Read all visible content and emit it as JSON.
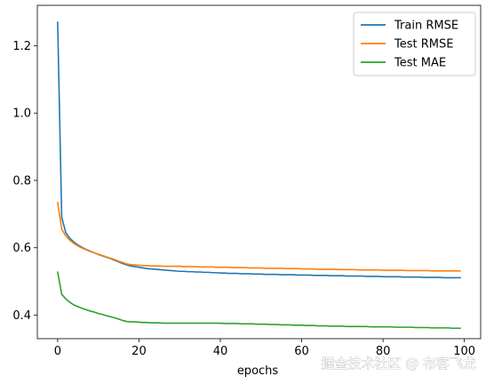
{
  "chart_data": {
    "type": "line",
    "title": "",
    "xlabel": "epochs",
    "ylabel": "",
    "xlim": [
      -5,
      104
    ],
    "ylim": [
      0.33,
      1.32
    ],
    "xticks": [
      0,
      20,
      40,
      60,
      80,
      100
    ],
    "yticks": [
      0.4,
      0.6,
      0.8,
      1.0,
      1.2
    ],
    "xtick_labels": [
      "0",
      "20",
      "40",
      "60",
      "80",
      "100"
    ],
    "ytick_labels": [
      "0.4",
      "0.6",
      "0.8",
      "1.0",
      "1.2"
    ],
    "grid": false,
    "legend": "top-right",
    "x": [
      0,
      1,
      2,
      3,
      4,
      5,
      6,
      7,
      8,
      9,
      10,
      11,
      12,
      13,
      14,
      15,
      16,
      17,
      18,
      19,
      20,
      21,
      22,
      23,
      24,
      25,
      26,
      27,
      28,
      29,
      30,
      31,
      32,
      33,
      34,
      35,
      36,
      37,
      38,
      39,
      40,
      41,
      42,
      43,
      44,
      45,
      46,
      47,
      48,
      49,
      50,
      51,
      52,
      53,
      54,
      55,
      56,
      57,
      58,
      59,
      60,
      61,
      62,
      63,
      64,
      65,
      66,
      67,
      68,
      69,
      70,
      71,
      72,
      73,
      74,
      75,
      76,
      77,
      78,
      79,
      80,
      81,
      82,
      83,
      84,
      85,
      86,
      87,
      88,
      89,
      90,
      91,
      92,
      93,
      94,
      95,
      96,
      97,
      98,
      99
    ],
    "series": [
      {
        "name": "Train RMSE",
        "color": "#1f77b4",
        "values": [
          1.27,
          0.69,
          0.645,
          0.628,
          0.617,
          0.608,
          0.601,
          0.595,
          0.59,
          0.585,
          0.58,
          0.576,
          0.572,
          0.568,
          0.563,
          0.558,
          0.553,
          0.549,
          0.546,
          0.544,
          0.542,
          0.54,
          0.538,
          0.537,
          0.536,
          0.535,
          0.534,
          0.533,
          0.532,
          0.531,
          0.53,
          0.53,
          0.529,
          0.529,
          0.528,
          0.528,
          0.527,
          0.527,
          0.526,
          0.526,
          0.525,
          0.525,
          0.524,
          0.524,
          0.524,
          0.523,
          0.523,
          0.523,
          0.522,
          0.522,
          0.522,
          0.521,
          0.521,
          0.521,
          0.521,
          0.52,
          0.52,
          0.52,
          0.52,
          0.519,
          0.519,
          0.519,
          0.519,
          0.518,
          0.518,
          0.518,
          0.518,
          0.517,
          0.517,
          0.517,
          0.517,
          0.516,
          0.516,
          0.516,
          0.516,
          0.516,
          0.515,
          0.515,
          0.515,
          0.515,
          0.514,
          0.514,
          0.514,
          0.514,
          0.514,
          0.513,
          0.513,
          0.513,
          0.513,
          0.513,
          0.512,
          0.512,
          0.512,
          0.512,
          0.512,
          0.511,
          0.511,
          0.511,
          0.511,
          0.511
        ]
      },
      {
        "name": "Test RMSE",
        "color": "#ff7f0e",
        "values": [
          0.735,
          0.655,
          0.635,
          0.622,
          0.613,
          0.605,
          0.599,
          0.594,
          0.589,
          0.585,
          0.581,
          0.577,
          0.573,
          0.569,
          0.565,
          0.56,
          0.556,
          0.552,
          0.55,
          0.549,
          0.548,
          0.547,
          0.547,
          0.546,
          0.546,
          0.546,
          0.545,
          0.545,
          0.545,
          0.545,
          0.545,
          0.544,
          0.544,
          0.544,
          0.544,
          0.543,
          0.543,
          0.543,
          0.543,
          0.542,
          0.542,
          0.542,
          0.542,
          0.541,
          0.541,
          0.541,
          0.541,
          0.54,
          0.54,
          0.54,
          0.54,
          0.539,
          0.539,
          0.539,
          0.539,
          0.539,
          0.538,
          0.538,
          0.538,
          0.538,
          0.537,
          0.537,
          0.537,
          0.537,
          0.536,
          0.536,
          0.536,
          0.536,
          0.536,
          0.535,
          0.535,
          0.535,
          0.535,
          0.535,
          0.534,
          0.534,
          0.534,
          0.534,
          0.534,
          0.534,
          0.533,
          0.533,
          0.533,
          0.533,
          0.533,
          0.533,
          0.532,
          0.532,
          0.532,
          0.532,
          0.532,
          0.532,
          0.531,
          0.531,
          0.531,
          0.531,
          0.531,
          0.531,
          0.531,
          0.531
        ]
      },
      {
        "name": "Test MAE",
        "color": "#2ca02c",
        "values": [
          0.528,
          0.462,
          0.448,
          0.438,
          0.43,
          0.425,
          0.42,
          0.416,
          0.412,
          0.409,
          0.405,
          0.402,
          0.398,
          0.395,
          0.392,
          0.388,
          0.384,
          0.381,
          0.38,
          0.38,
          0.379,
          0.378,
          0.378,
          0.377,
          0.377,
          0.377,
          0.376,
          0.376,
          0.376,
          0.376,
          0.376,
          0.376,
          0.376,
          0.376,
          0.376,
          0.376,
          0.376,
          0.376,
          0.376,
          0.376,
          0.376,
          0.375,
          0.375,
          0.375,
          0.375,
          0.374,
          0.374,
          0.374,
          0.374,
          0.373,
          0.373,
          0.373,
          0.372,
          0.372,
          0.372,
          0.371,
          0.371,
          0.371,
          0.37,
          0.37,
          0.37,
          0.369,
          0.369,
          0.369,
          0.368,
          0.368,
          0.368,
          0.367,
          0.367,
          0.367,
          0.367,
          0.366,
          0.366,
          0.366,
          0.366,
          0.366,
          0.366,
          0.365,
          0.365,
          0.365,
          0.365,
          0.365,
          0.365,
          0.364,
          0.364,
          0.364,
          0.364,
          0.364,
          0.363,
          0.363,
          0.363,
          0.363,
          0.362,
          0.362,
          0.362,
          0.362,
          0.362,
          0.361,
          0.361,
          0.361
        ]
      }
    ]
  },
  "watermark": {
    "text": "掘金技术社区 @ 布客飞龙"
  }
}
